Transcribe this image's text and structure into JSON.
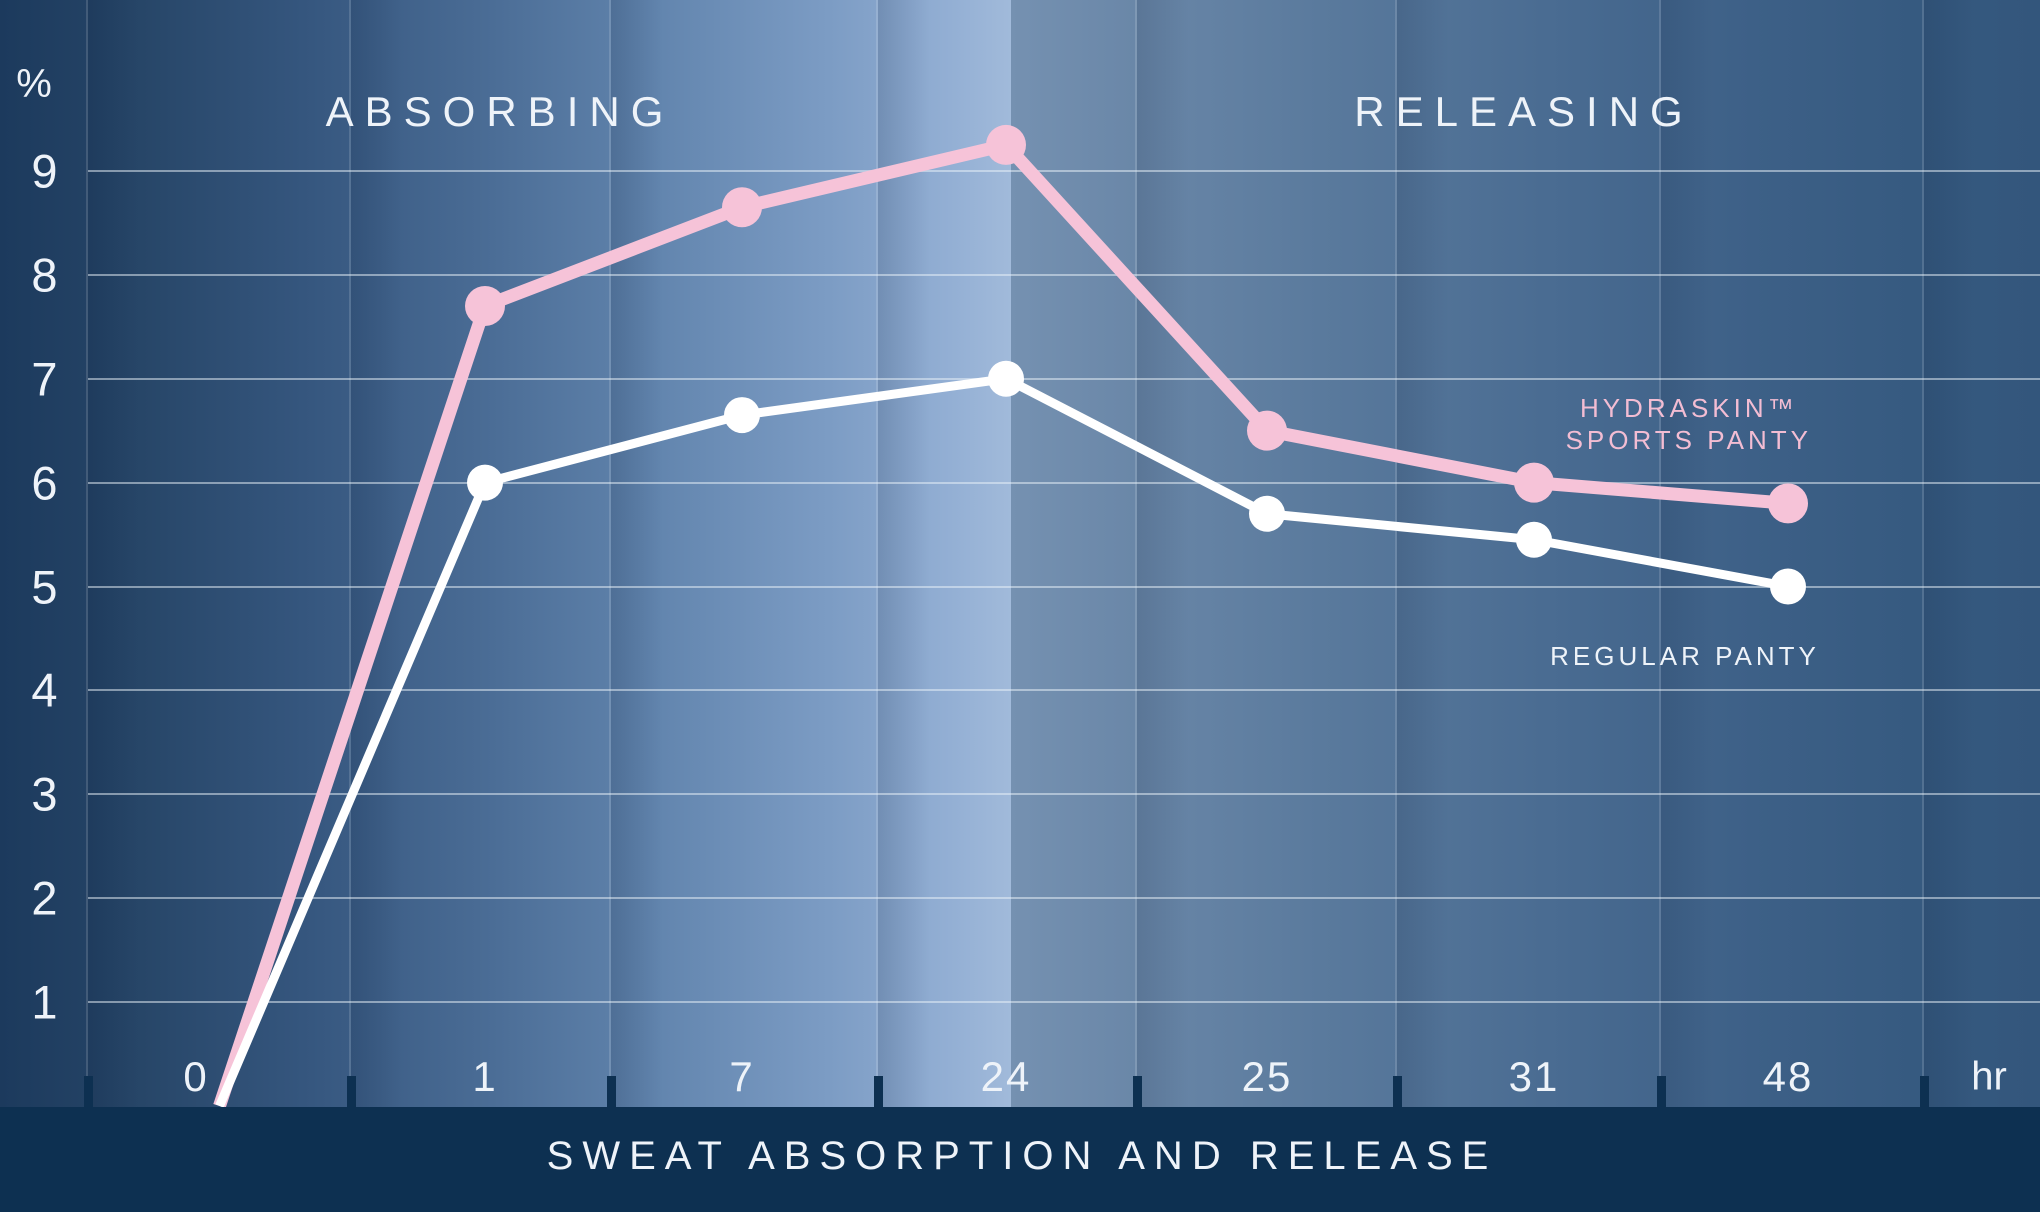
{
  "chart_data": {
    "type": "line",
    "title": "SWEAT ABSORPTION AND RELEASE",
    "y_unit": "%",
    "x_unit": "hr",
    "x_categories": [
      "0",
      "1",
      "7",
      "24",
      "25",
      "31",
      "48"
    ],
    "y_ticks": [
      "1",
      "2",
      "3",
      "4",
      "5",
      "6",
      "7",
      "8",
      "9"
    ],
    "ylim": [
      0,
      9.7
    ],
    "grid": true,
    "phase_labels": {
      "left": "ABSORBING",
      "right": "RELEASING"
    },
    "series": [
      {
        "name": "HYDRASKIN™ SPORTS PANTY",
        "legend_lines": [
          "HYDRASKIN™",
          "SPORTS PANTY"
        ],
        "color": "#f6c3d8",
        "values": [
          0,
          7.7,
          8.65,
          9.25,
          6.5,
          6.0,
          5.8
        ]
      },
      {
        "name": "REGULAR PANTY",
        "legend_lines": [
          "REGULAR PANTY"
        ],
        "color": "#ffffff",
        "values": [
          0,
          6.0,
          6.65,
          7.0,
          5.7,
          5.45,
          5.0
        ]
      }
    ],
    "legend_position": "inline-right"
  },
  "colors": {
    "band": "#0d3051",
    "grid": "rgba(235,243,250,0.5)",
    "text": "#eef3f9",
    "pink_text": "#f3bdd3"
  }
}
